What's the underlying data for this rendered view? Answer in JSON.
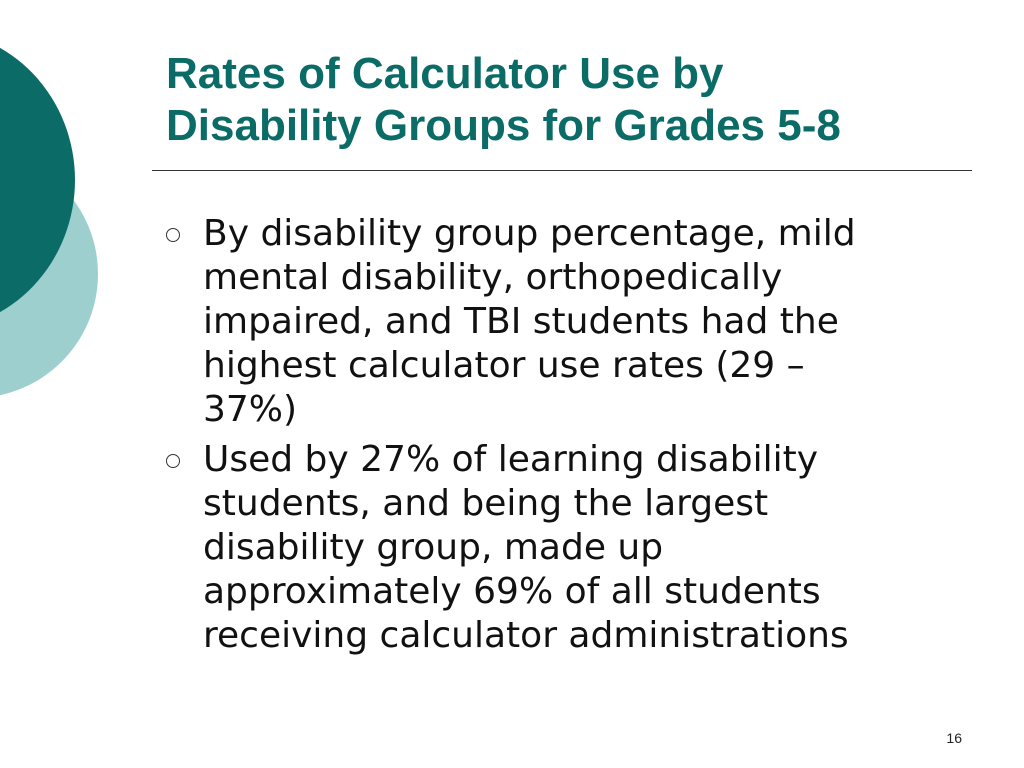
{
  "slide": {
    "title_lines": [
      "Rates of Calculator Use by",
      "Disability Groups for Grades 5-8"
    ],
    "bullets": [
      {
        "lines": [
          "By disability group percentage, mild",
          "mental disability, orthopedically",
          "impaired, and TBI students had the",
          "highest calculator use rates (29 –",
          "37%)"
        ]
      },
      {
        "lines": [
          "Used by 27% of learning disability",
          "students, and being the largest",
          "disability group, made up",
          "approximately 69% of all students",
          "receiving calculator administrations"
        ]
      }
    ],
    "page_number": "16"
  },
  "colors": {
    "accent_dark_teal": "#0b6b66",
    "accent_light_teal": "#9ecfcf",
    "text": "#111111"
  }
}
